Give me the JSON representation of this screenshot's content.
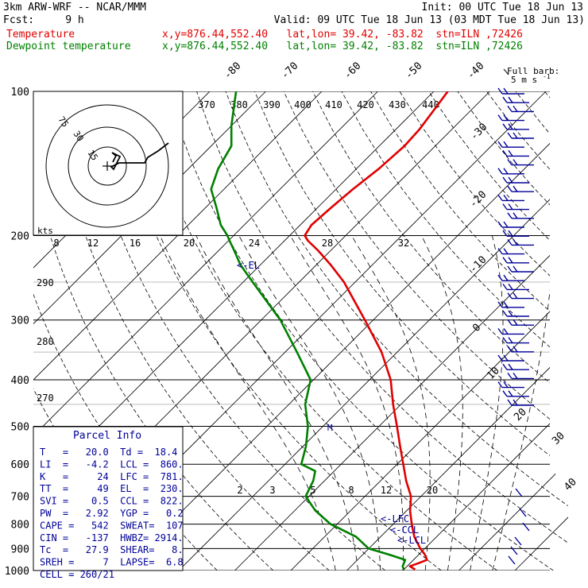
{
  "header": {
    "model": "3km ARW-WRF -- NCAR/MMM",
    "init": "Init: 00 UTC Tue 18 Jun 13",
    "fcst": "Fcst:     9 h",
    "valid": "Valid: 09 UTC Tue 18 Jun 13 (03 MDT Tue 18 Jun 13)",
    "temp_label": "Temperature",
    "temp_loc": "x,y=876.44,552.40   lat,lon= 39.42, -83.82  stn=ILN ,72426",
    "dew_label": "Dewpoint temperature",
    "dew_loc": "x,y=876.44,552.40   lat,lon= 39.42, -83.82  stn=ILN ,72426"
  },
  "colors": {
    "temperature": "#e00000",
    "dewpoint": "#008000",
    "wind": "#000099",
    "hodograph": "#000000",
    "text": "#000000",
    "parcel": "#000099"
  },
  "barb_legend": {
    "line1": "Full barb:",
    "line2": "5 m s",
    "sup": "-1"
  },
  "parcel_info": {
    "title": "Parcel Info",
    "rows": [
      "T   =   20.0  Td =  18.4",
      "LI  =   -4.2  LCL =  860.",
      "K   =     24  LFC =  781.",
      "TT  =     49  EL  =  230.",
      "SVI =    0.5  CCL =  822.",
      "PW  =   2.92  YGP =   0.2",
      "CAPE =   542  SWEAT=  107",
      "CIN =   -137  HWBZ= 2914.",
      "Tc  =   27.9  SHEAR=   8.",
      "SREH =     7  LAPSE=  6.8",
      "CELL = 260/21"
    ]
  },
  "hodograph": {
    "unit_label": "kts",
    "ring_labels": [
      "15",
      "30",
      "75"
    ]
  },
  "levels": {
    "el": "<-EL",
    "lfc": "<-LFC",
    "ccl": "<-CCL",
    "lcl": "<-LCL",
    "marker": "M"
  },
  "chart_data": {
    "type": "line",
    "title": "",
    "y_axis": {
      "label": "",
      "scale": "log",
      "range": [
        1000,
        100
      ],
      "ticks": [
        100,
        200,
        300,
        400,
        500,
        600,
        700,
        800,
        900,
        1000
      ]
    },
    "x_axis": {
      "range": [
        -40,
        50
      ],
      "isotherm_labels": [
        -80,
        -70,
        -60,
        -50,
        -40,
        -30,
        -20,
        -10,
        0,
        10,
        20,
        30,
        40
      ]
    },
    "theta_labels": [
      370,
      380,
      390,
      400,
      410,
      420,
      430,
      440
    ],
    "mixing_ratio_labels": [
      8,
      12,
      16,
      20,
      24,
      28,
      32
    ],
    "dry_adiabat_labels": [
      290,
      280,
      270
    ],
    "saturation_mixing_ratio_labels": [
      2,
      3,
      5,
      8,
      12,
      20
    ],
    "series": [
      {
        "name": "Temperature",
        "points": [
          [
            995,
            22.0
          ],
          [
            980,
            20.5
          ],
          [
            965,
            21.5
          ],
          [
            950,
            22.4
          ],
          [
            925,
            21.0
          ],
          [
            900,
            19.2
          ],
          [
            850,
            16.0
          ],
          [
            800,
            13.3
          ],
          [
            750,
            10.6
          ],
          [
            700,
            8.2
          ],
          [
            650,
            4.6
          ],
          [
            600,
            1.1
          ],
          [
            550,
            -2.7
          ],
          [
            500,
            -6.8
          ],
          [
            450,
            -11.4
          ],
          [
            400,
            -16.2
          ],
          [
            350,
            -22.8
          ],
          [
            300,
            -31.5
          ],
          [
            250,
            -42.0
          ],
          [
            230,
            -47.5
          ],
          [
            215,
            -52.2
          ],
          [
            205,
            -55.8
          ],
          [
            200,
            -57.3
          ],
          [
            190,
            -58.0
          ],
          [
            175,
            -57.6
          ],
          [
            160,
            -57.0
          ],
          [
            145,
            -56.0
          ],
          [
            130,
            -55.5
          ],
          [
            120,
            -55.8
          ],
          [
            110,
            -56.6
          ],
          [
            100,
            -57.5
          ]
        ]
      },
      {
        "name": "Dewpoint temperature",
        "points": [
          [
            995,
            20.0
          ],
          [
            980,
            19.2
          ],
          [
            950,
            18.5
          ],
          [
            925,
            14.5
          ],
          [
            900,
            10.0
          ],
          [
            850,
            5.6
          ],
          [
            800,
            -1.2
          ],
          [
            750,
            -6.3
          ],
          [
            700,
            -10.6
          ],
          [
            650,
            -12.0
          ],
          [
            620,
            -13.4
          ],
          [
            600,
            -17.1
          ],
          [
            550,
            -19.5
          ],
          [
            500,
            -22.7
          ],
          [
            450,
            -27.1
          ],
          [
            400,
            -30.5
          ],
          [
            350,
            -37.9
          ],
          [
            300,
            -46.6
          ],
          [
            250,
            -58.3
          ],
          [
            230,
            -63.6
          ],
          [
            215,
            -67.2
          ],
          [
            205,
            -69.8
          ],
          [
            200,
            -71.1
          ],
          [
            190,
            -74.2
          ],
          [
            175,
            -78.0
          ],
          [
            160,
            -82.3
          ],
          [
            145,
            -84.7
          ],
          [
            130,
            -86.4
          ],
          [
            118,
            -90.0
          ],
          [
            100,
            -95.3
          ]
        ]
      }
    ]
  }
}
